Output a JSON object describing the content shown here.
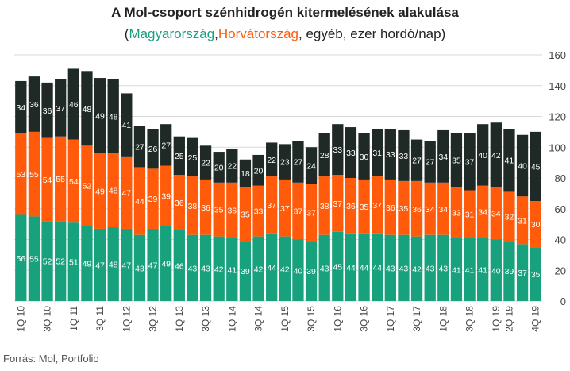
{
  "title": "A Mol-csoport szénhidrogén kitermelésének alakulása",
  "subtitle": {
    "open": "(",
    "hu": "Magyarország",
    "sep": ",",
    "hr": "Horvátország",
    "rest": ", egyéb, ezer hordó/nap)"
  },
  "source": "Forrás: Mol, Portfolio",
  "colors": {
    "hu": "#17a17c",
    "hr": "#ff5b0a",
    "other": "#1f2a26",
    "grid": "#d9d9d9"
  },
  "chart_data": {
    "type": "bar",
    "stacked": true,
    "title": "A Mol-csoport szénhidrogén kitermelésének alakulása",
    "ylim": [
      0,
      160
    ],
    "yticks": [
      0,
      20,
      40,
      60,
      80,
      100,
      120,
      140,
      160
    ],
    "y_axis_side": "right",
    "grid": true,
    "categories": [
      "1Q 10",
      "2Q 10",
      "3Q 10",
      "4Q 10",
      "1Q 11",
      "2Q 11",
      "3Q 11",
      "4Q 11",
      "1Q 12",
      "2Q 12",
      "3Q 12",
      "4Q 12",
      "1Q 13",
      "2Q 13",
      "3Q 13",
      "4Q 13",
      "1Q 14",
      "2Q 14",
      "3Q 14",
      "4Q 14",
      "1Q 15",
      "2Q 15",
      "3Q 15",
      "4Q 15",
      "1Q 16",
      "2Q 16",
      "3Q 16",
      "4Q 16",
      "1Q 17",
      "2Q 17",
      "3Q 17",
      "4Q 17",
      "1Q 18",
      "2Q 18",
      "3Q 18",
      "4Q 18",
      "1Q 19",
      "2Q 19",
      "3Q 19",
      "4Q 19"
    ],
    "x_tick_labels": [
      "1Q 10",
      "3Q 10",
      "1Q 11",
      "3Q 11",
      "1Q 12",
      "3Q 12",
      "1Q 13",
      "3Q 13",
      "1Q 14",
      "3Q 14",
      "1Q 15",
      "3Q 15",
      "1Q 16",
      "3Q 16",
      "1Q 17",
      "3Q 17",
      "1Q 18",
      "3Q 18",
      "1Q 19",
      "2Q 19",
      "4Q 19"
    ],
    "series": [
      {
        "name": "Magyarország",
        "key": "hu",
        "values": [
          56,
          55,
          52,
          52,
          51,
          49,
          47,
          48,
          47,
          43,
          47,
          49,
          46,
          43,
          43,
          42,
          41,
          39,
          42,
          44,
          42,
          40,
          39,
          43,
          45,
          44,
          44,
          44,
          43,
          43,
          42,
          43,
          43,
          41,
          41,
          41,
          40,
          39,
          37,
          35
        ]
      },
      {
        "name": "Horvátország",
        "key": "hr",
        "values": [
          53,
          55,
          54,
          55,
          54,
          52,
          49,
          48,
          47,
          44,
          39,
          39,
          36,
          38,
          36,
          35,
          36,
          35,
          33,
          37,
          37,
          37,
          37,
          38,
          37,
          36,
          35,
          37,
          36,
          35,
          36,
          34,
          34,
          33,
          31,
          34,
          34,
          32,
          31,
          30
        ]
      },
      {
        "name": "egyéb",
        "key": "other",
        "values": [
          34,
          36,
          36,
          37,
          46,
          48,
          49,
          48,
          41,
          27,
          26,
          27,
          25,
          25,
          22,
          20,
          22,
          18,
          20,
          22,
          23,
          27,
          24,
          28,
          33,
          33,
          30,
          31,
          33,
          33,
          27,
          27,
          34,
          35,
          37,
          40,
          42,
          41,
          40,
          45
        ]
      }
    ]
  }
}
